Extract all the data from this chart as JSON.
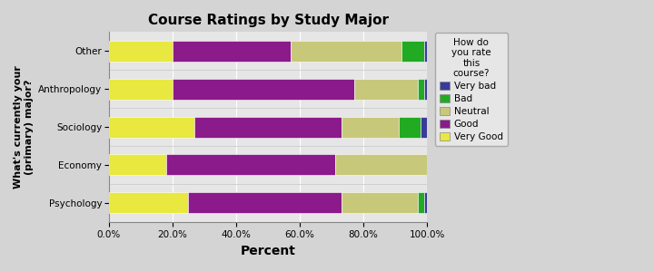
{
  "categories": [
    "Psychology",
    "Economy",
    "Sociology",
    "Anthropology",
    "Other"
  ],
  "segments": {
    "Very Good": [
      25,
      18,
      27,
      20,
      20
    ],
    "Good": [
      48,
      53,
      46,
      57,
      37
    ],
    "Neutral": [
      24,
      29,
      18,
      20,
      35
    ],
    "Bad": [
      2,
      0,
      7,
      2,
      7
    ],
    "Very bad": [
      1,
      0,
      2,
      1,
      1
    ]
  },
  "colors": {
    "Very bad": "#3a3a9a",
    "Bad": "#22aa22",
    "Neutral": "#c8c87a",
    "Good": "#8b1a8b",
    "Very Good": "#e8e840"
  },
  "title": "Course Ratings by Study Major",
  "xlabel": "Percent",
  "ylabel": "What's currently your\n(primary) major?",
  "legend_title": "How do\nyou rate\nthis\ncourse?",
  "xlim": [
    0,
    100
  ],
  "fig_width": 7.2,
  "fig_height": 2.99,
  "dpi": 100
}
